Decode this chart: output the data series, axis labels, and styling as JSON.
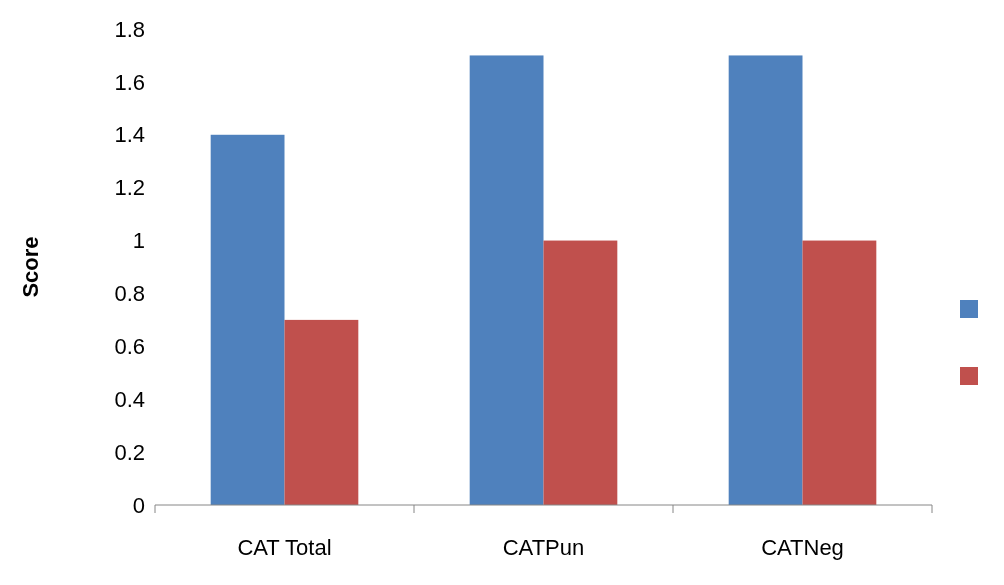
{
  "chart_data": {
    "type": "bar",
    "ylabel": "Score",
    "categories": [
      "CAT Total",
      "CATPun",
      "CATNeg"
    ],
    "series": [
      {
        "color": "#4f81bd",
        "values": [
          1.4,
          1.7,
          1.7
        ]
      },
      {
        "color": "#c0504d",
        "values": [
          0.7,
          1.0,
          1.0
        ]
      }
    ],
    "ylim": [
      0,
      1.8
    ],
    "yticks": [
      0,
      {
        "value": 0.2,
        "label": "0.2"
      },
      {
        "value": 0.4,
        "label": "0.4"
      },
      {
        "value": 0.6,
        "label": "0.6"
      },
      {
        "value": 0.8,
        "label": "0.8"
      },
      1,
      {
        "value": 1.2,
        "label": "1.2"
      },
      {
        "value": 1.4,
        "label": "1.4"
      },
      {
        "value": 1.6,
        "label": "1.6"
      },
      {
        "value": 1.8,
        "label": "1.8"
      }
    ],
    "grid": false
  }
}
